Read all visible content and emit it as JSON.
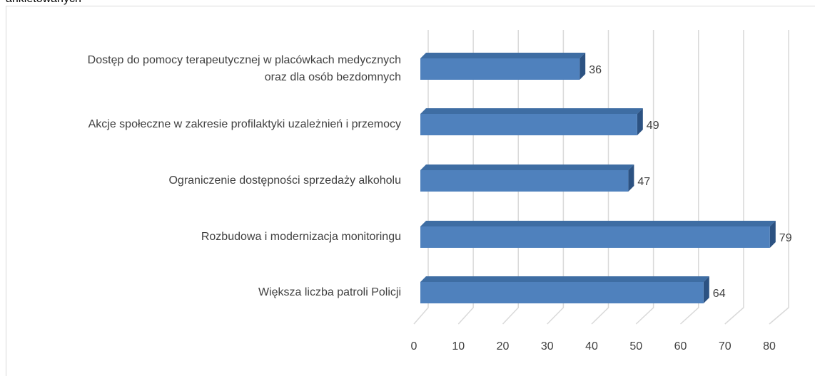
{
  "chart_data": {
    "type": "bar3d_horizontal",
    "title": "ankietowanych",
    "categories": [
      "Dostęp do pomocy terapeutycznej w placówkach medycznych oraz dla osób bezdomnych",
      "Akcje społeczne w zakresie profilaktyki uzależnień i przemocy",
      "Ograniczenie dostępności sprzedaży alkoholu",
      "Rozbudowa i modernizacja monitoringu",
      "Większa liczba patroli Policji"
    ],
    "values": [
      36,
      49,
      47,
      79,
      64
    ],
    "color": "#4f81bd",
    "xlim": [
      0,
      80
    ],
    "xticks": [
      0,
      10,
      20,
      30,
      40,
      50,
      60,
      70,
      80
    ],
    "grid": true
  }
}
